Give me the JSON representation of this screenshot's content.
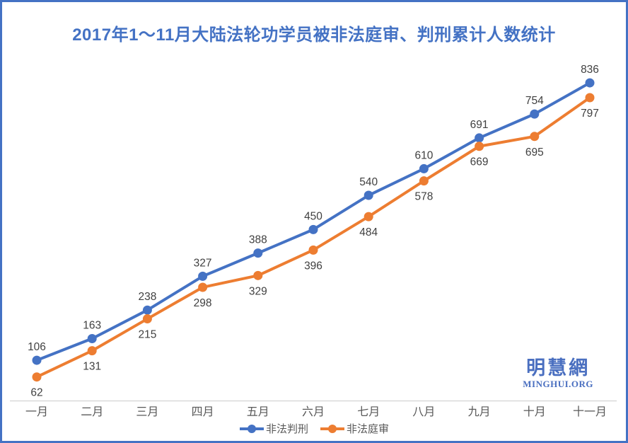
{
  "title": "2017年1～11月大陆法轮功学员被非法庭审、判刑累计人数统计",
  "colors": {
    "blue_series": "#4472C4",
    "orange_series": "#ED7D31",
    "border": "#4472C4",
    "title": "#4472C4",
    "axis_line": "#D9D9D9",
    "data_label": "#404040",
    "tick_label": "#595959",
    "logo_blue": "#4A6FC0"
  },
  "chart_data": {
    "type": "line",
    "title": "2017年1～11月大陆法轮功学员被非法庭审、判刑累计人数统计",
    "categories": [
      "一月",
      "二月",
      "三月",
      "四月",
      "五月",
      "六月",
      "七月",
      "八月",
      "九月",
      "十月",
      "十一月"
    ],
    "series": [
      {
        "name": "非法判刑",
        "color": "#4472C4",
        "values": [
          106,
          163,
          238,
          327,
          388,
          450,
          540,
          610,
          691,
          754,
          836
        ],
        "label_position": "above"
      },
      {
        "name": "非法庭审",
        "color": "#ED7D31",
        "values": [
          62,
          131,
          215,
          298,
          329,
          396,
          484,
          578,
          669,
          695,
          797
        ],
        "label_position": "below"
      }
    ],
    "xlabel": "",
    "ylabel": "",
    "ylim": [
      0,
      900
    ],
    "grid": false,
    "legend_position": "bottom",
    "data_labels": true
  },
  "legend": {
    "items": [
      {
        "label": "非法判刑",
        "color": "#4472C4"
      },
      {
        "label": "非法庭审",
        "color": "#ED7D31"
      }
    ]
  },
  "logo": {
    "cn": "明慧網",
    "en": "MINGHUI.ORG"
  }
}
